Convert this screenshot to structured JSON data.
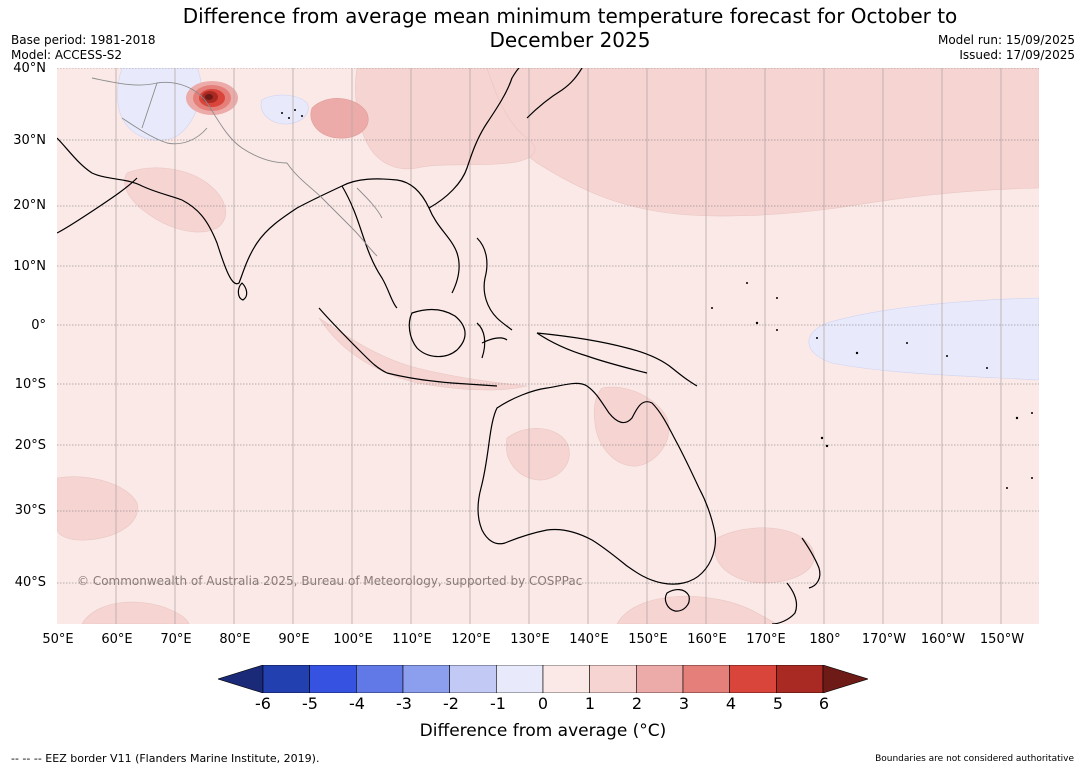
{
  "title": "Difference from average mean minimum temperature forecast for October to December 2025",
  "meta_left": {
    "base_period": "Base period: 1981-2018",
    "model": "Model: ACCESS-S2"
  },
  "meta_right": {
    "model_run": "Model run: 15/09/2025",
    "issued": "Issued: 17/09/2025"
  },
  "lat_labels": [
    "40°N",
    "30°N",
    "20°N",
    "10°N",
    "0°",
    "10°S",
    "20°S",
    "30°S",
    "40°S"
  ],
  "lon_labels": [
    "50°E",
    "60°E",
    "70°E",
    "80°E",
    "90°E",
    "100°E",
    "110°E",
    "120°E",
    "130°E",
    "140°E",
    "150°E",
    "160°E",
    "170°E",
    "180°",
    "170°W",
    "160°W",
    "150°W"
  ],
  "copyright": "© Commonwealth of Australia 2025, Bureau of Meteorology, supported by COSPPac",
  "colorbar": {
    "ticks": [
      "-6",
      "-5",
      "-4",
      "-3",
      "-2",
      "-1",
      "0",
      "1",
      "2",
      "3",
      "4",
      "5",
      "6"
    ],
    "colors": [
      "#1a2a78",
      "#2340b0",
      "#3553e0",
      "#6079e6",
      "#8c9fee",
      "#c2c9f4",
      "#e8eafb",
      "#fbe9e7",
      "#f5d4d2",
      "#ecaba8",
      "#e57f79",
      "#d9443b",
      "#a82a23",
      "#6e1a16"
    ],
    "label": "Difference from average (°C)"
  },
  "footer": {
    "eez": "--  --  -- EEZ border V11 (Flanders Marine Institute, 2019).",
    "boundaries": "Boundaries are not considered authoritative"
  }
}
